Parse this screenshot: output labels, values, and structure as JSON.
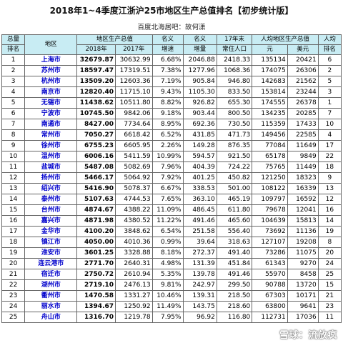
{
  "title": "2018年1~4季度江浙沪25市地区生产总值排名【初步统计版】",
  "subtitle": "百度北海居吧：故何潇",
  "headers": {
    "rank_total": "总量",
    "rank_total_sub": "排名",
    "region": "地区",
    "gdp": "地区生产总值",
    "gdp_2018": "2018年",
    "gdp_2017": "2017年",
    "nominal": "名义",
    "nominal_sub": "增速",
    "growth": "名义",
    "growth_sub": "增量",
    "pop": "17年末",
    "pop_sub": "常住人口",
    "per_capita": "人均地区生产总值",
    "pc_yuan": "元",
    "pc_usd": "美元",
    "pc_rank": "人均",
    "pc_rank_sub": "排名"
  },
  "rows": [
    {
      "rank": "1",
      "city": "上海市",
      "gdp2018": "32679.87",
      "gdp2017": "30632.99",
      "rate": "6.68%",
      "inc": "2046.88",
      "pop": "2418.33",
      "yuan": "135134",
      "usd": "20421",
      "pcrank": "6"
    },
    {
      "rank": "2",
      "city": "苏州市",
      "gdp2018": "18597.47",
      "gdp2017": "17319.51",
      "rate": "7.38%",
      "inc": "1277.96",
      "pop": "1068.36",
      "yuan": "174075",
      "usd": "26306",
      "pcrank": "2"
    },
    {
      "rank": "3",
      "city": "杭州市",
      "gdp2018": "13509.20",
      "gdp2017": "12603.36",
      "rate": "7.19%",
      "inc": "905.84",
      "pop": "946.80",
      "yuan": "142683",
      "usd": "21562",
      "pcrank": "5"
    },
    {
      "rank": "4",
      "city": "南京市",
      "gdp2018": "12820.40",
      "gdp2017": "11715.10",
      "rate": "9.43%",
      "inc": "1105.30",
      "pop": "833.50",
      "yuan": "153814",
      "usd": "23244",
      "pcrank": "3"
    },
    {
      "rank": "5",
      "city": "无锡市",
      "gdp2018": "11438.62",
      "gdp2017": "10511.80",
      "rate": "8.82%",
      "inc": "926.82",
      "pop": "655.30",
      "yuan": "174555",
      "usd": "26378",
      "pcrank": "1"
    },
    {
      "rank": "6",
      "city": "宁波市",
      "gdp2018": "10745.50",
      "gdp2017": "9842.06",
      "rate": "9.18%",
      "inc": "903.44",
      "pop": "800.50",
      "yuan": "134235",
      "usd": "20285",
      "pcrank": "7"
    },
    {
      "rank": "7",
      "city": "南通市",
      "gdp2018": "8427.00",
      "gdp2017": "7734.64",
      "rate": "8.95%",
      "inc": "692.36",
      "pop": "730.50",
      "yuan": "115359",
      "usd": "17433",
      "pcrank": "10"
    },
    {
      "rank": "8",
      "city": "常州市",
      "gdp2018": "7050.27",
      "gdp2017": "6618.42",
      "rate": "6.52%",
      "inc": "431.85",
      "pop": "471.73",
      "yuan": "149456",
      "usd": "22585",
      "pcrank": "4"
    },
    {
      "rank": "9",
      "city": "徐州市",
      "gdp2018": "6755.23",
      "gdp2017": "6605.95",
      "rate": "2.26%",
      "inc": "149.28",
      "pop": "876.35",
      "yuan": "77084",
      "usd": "11649",
      "pcrank": "17"
    },
    {
      "rank": "10",
      "city": "温州市",
      "gdp2018": "6006.16",
      "gdp2017": "5411.59",
      "rate": "10.99%",
      "inc": "594.57",
      "pop": "921.50",
      "yuan": "65178",
      "usd": "9849",
      "pcrank": "22"
    },
    {
      "rank": "11",
      "city": "盐城市",
      "gdp2018": "5487.08",
      "gdp2017": "5082.69",
      "rate": "7.96%",
      "inc": "404.39",
      "pop": "724.22",
      "yuan": "75765",
      "usd": "11449",
      "pcrank": "18"
    },
    {
      "rank": "12",
      "city": "扬州市",
      "gdp2018": "5466.17",
      "gdp2017": "5064.92",
      "rate": "7.92%",
      "inc": "401.25",
      "pop": "450.82",
      "yuan": "121250",
      "usd": "18323",
      "pcrank": "9"
    },
    {
      "rank": "13",
      "city": "绍兴市",
      "gdp2018": "5416.90",
      "gdp2017": "5078.37",
      "rate": "6.67%",
      "inc": "338.53",
      "pop": "501.00",
      "yuan": "108122",
      "usd": "16339",
      "pcrank": "13"
    },
    {
      "rank": "14",
      "city": "泰州市",
      "gdp2018": "5107.63",
      "gdp2017": "4744.53",
      "rate": "7.65%",
      "inc": "363.10",
      "pop": "465.19",
      "yuan": "109797",
      "usd": "16592",
      "pcrank": "12"
    },
    {
      "rank": "15",
      "city": "台州市",
      "gdp2018": "4874.67",
      "gdp2017": "4388.22",
      "rate": "11.09%",
      "inc": "486.45",
      "pop": "611.80",
      "yuan": "79678",
      "usd": "12041",
      "pcrank": "16"
    },
    {
      "rank": "16",
      "city": "嘉兴市",
      "gdp2018": "4871.98",
      "gdp2017": "4380.52",
      "rate": "11.22%",
      "inc": "491.46",
      "pop": "465.60",
      "yuan": "104639",
      "usd": "15813",
      "pcrank": "14"
    },
    {
      "rank": "17",
      "city": "金华市",
      "gdp2018": "4100.20",
      "gdp2017": "3848.62",
      "rate": "6.54%",
      "inc": "251.58",
      "pop": "556.40",
      "yuan": "73692",
      "usd": "11136",
      "pcrank": "19"
    },
    {
      "rank": "18",
      "city": "镇江市",
      "gdp2018": "4050.00",
      "gdp2017": "4010.36",
      "rate": "0.99%",
      "inc": "39.64",
      "pop": "318.63",
      "yuan": "127107",
      "usd": "19208",
      "pcrank": "8"
    },
    {
      "rank": "19",
      "city": "淮安市",
      "gdp2018": "3601.25",
      "gdp2017": "3328.88",
      "rate": "8.18%",
      "inc": "272.37",
      "pop": "491.40",
      "yuan": "73286",
      "usd": "11075",
      "pcrank": "20"
    },
    {
      "rank": "20",
      "city": "连云港市",
      "gdp2018": "2771.70",
      "gdp2017": "2640.31",
      "rate": "4.98%",
      "inc": "131.39",
      "pop": "451.84",
      "yuan": "61343",
      "usd": "9270",
      "pcrank": "24"
    },
    {
      "rank": "21",
      "city": "宿迁市",
      "gdp2018": "2750.72",
      "gdp2017": "2610.94",
      "rate": "5.35%",
      "inc": "139.78",
      "pop": "491.46",
      "yuan": "55970",
      "usd": "8458",
      "pcrank": "25"
    },
    {
      "rank": "22",
      "city": "湖州市",
      "gdp2018": "2719.10",
      "gdp2017": "2476.13",
      "rate": "9.81%",
      "inc": "242.97",
      "pop": "299.50",
      "yuan": "90788",
      "usd": "13720",
      "pcrank": "15"
    },
    {
      "rank": "23",
      "city": "衢州市",
      "gdp2018": "1470.58",
      "gdp2017": "1331.27",
      "rate": "10.46%",
      "inc": "139.31",
      "pop": "218.50",
      "yuan": "67303",
      "usd": "10171",
      "pcrank": "21"
    },
    {
      "rank": "24",
      "city": "丽水市",
      "gdp2018": "1394.67",
      "gdp2017": "1250.92",
      "rate": "11.49%",
      "inc": "143.75",
      "pop": "218.60",
      "yuan": "63800",
      "usd": "9641",
      "pcrank": "23"
    },
    {
      "rank": "25",
      "city": "舟山市",
      "gdp2018": "1316.70",
      "gdp2017": "1219.78",
      "rate": "7.95%",
      "inc": "96.92",
      "pop": "116.80",
      "yuan": "112731",
      "usd": "17036",
      "pcrank": "11"
    }
  ],
  "watermark": "雪球：流放疯"
}
